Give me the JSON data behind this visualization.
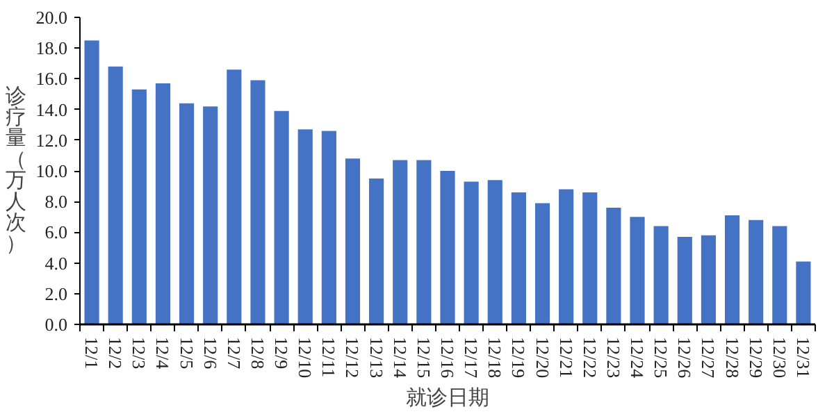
{
  "chart_data": {
    "type": "bar",
    "xlabel": "就诊日期",
    "ylabel": "诊疗量（万人次）",
    "categories": [
      "12/1",
      "12/2",
      "12/3",
      "12/4",
      "12/5",
      "12/6",
      "12/7",
      "12/8",
      "12/9",
      "12/10",
      "12/11",
      "12/12",
      "12/13",
      "12/14",
      "12/15",
      "12/16",
      "12/17",
      "12/18",
      "12/19",
      "12/20",
      "12/21",
      "12/22",
      "12/23",
      "12/24",
      "12/25",
      "12/26",
      "12/27",
      "12/28",
      "12/29",
      "12/30",
      "12/31"
    ],
    "values": [
      18.5,
      16.8,
      15.3,
      15.7,
      14.4,
      14.2,
      16.6,
      15.9,
      13.9,
      12.7,
      12.6,
      10.8,
      9.5,
      10.7,
      10.7,
      10.0,
      9.3,
      9.4,
      8.6,
      7.9,
      8.8,
      8.6,
      7.6,
      7.0,
      6.4,
      5.7,
      5.8,
      7.1,
      6.8,
      6.4,
      4.1
    ],
    "color": "#4472c4",
    "ylim": [
      0,
      20
    ],
    "yticks": [
      {
        "value": 0,
        "label": "0.0"
      },
      {
        "value": 2,
        "label": "2.0"
      },
      {
        "value": 4,
        "label": "4.0"
      },
      {
        "value": 6,
        "label": "6.0"
      },
      {
        "value": 8,
        "label": "8.0"
      },
      {
        "value": 10,
        "label": "10.0"
      },
      {
        "value": 12,
        "label": "12.0"
      },
      {
        "value": 14,
        "label": "14.0"
      },
      {
        "value": 16,
        "label": "16.0"
      },
      {
        "value": 18,
        "label": "18.0"
      },
      {
        "value": 20,
        "label": "20.0"
      }
    ],
    "grid": false
  }
}
